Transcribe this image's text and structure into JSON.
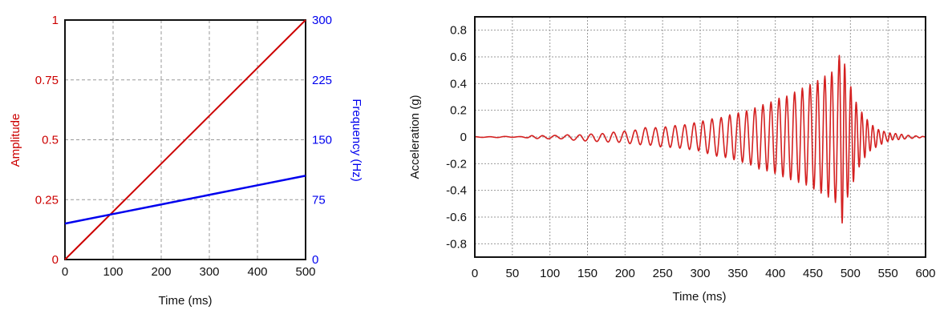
{
  "chart_data": [
    {
      "type": "line",
      "xlabel": "Time (ms)",
      "ylabel": "Amplitude",
      "y2label": "Frequency (Hz)",
      "xlim": [
        0,
        500
      ],
      "ylim": [
        0,
        1
      ],
      "y2lim": [
        0,
        300
      ],
      "xticks": [
        "0",
        "100",
        "200",
        "300",
        "400",
        "500"
      ],
      "yticks": [
        "0",
        "0.25",
        "0.5",
        "0.75",
        "1"
      ],
      "y2ticks": [
        "0",
        "75",
        "150",
        "225",
        "300"
      ],
      "grid": true,
      "colors": {
        "amplitude": "#cc0000",
        "frequency": "#0000ee"
      },
      "x": [
        0,
        100,
        200,
        300,
        400,
        500
      ],
      "series": [
        {
          "axis": "left",
          "values": [
            0,
            0.2,
            0.4,
            0.6,
            0.8,
            1.0
          ]
        },
        {
          "axis": "right",
          "values": [
            45,
            57,
            69,
            81,
            93,
            105
          ]
        }
      ]
    },
    {
      "type": "line",
      "xlabel": "Time (ms)",
      "ylabel": "Acceleration (g)",
      "xlim": [
        0,
        600
      ],
      "ylim": [
        -0.9,
        0.9
      ],
      "xticks": [
        "0",
        "50",
        "100",
        "150",
        "200",
        "250",
        "300",
        "350",
        "400",
        "450",
        "500",
        "550",
        "600"
      ],
      "yticks": [
        "-0.8",
        "-0.6",
        "-0.4",
        "-0.2",
        "0",
        "0.2",
        "0.4",
        "0.6",
        "0.8"
      ],
      "grid": true,
      "colors": {
        "signal": "#d42020"
      },
      "series": [
        {
          "points_note_type": "local extrema",
          "points": [
            [
              0,
              0.002
            ],
            [
              10,
              -0.003
            ],
            [
              20,
              0.002
            ],
            [
              30,
              -0.004
            ],
            [
              40,
              0.004
            ],
            [
              50,
              -0.002
            ],
            [
              60,
              0.003
            ],
            [
              70,
              -0.006
            ],
            [
              76,
              0.01
            ],
            [
              83,
              -0.012
            ],
            [
              90,
              0.01
            ],
            [
              98,
              -0.014
            ],
            [
              106.6,
              0.012
            ],
            [
              115,
              -0.014
            ],
            [
              123.3,
              0.016
            ],
            [
              131.5,
              -0.024
            ],
            [
              139.8,
              0.016
            ],
            [
              147,
              -0.03
            ],
            [
              154.8,
              0.022
            ],
            [
              162.5,
              -0.034
            ],
            [
              170,
              0.026
            ],
            [
              177.5,
              -0.038
            ],
            [
              184.7,
              0.036
            ],
            [
              192,
              -0.04
            ],
            [
              199.3,
              0.044
            ],
            [
              206.5,
              -0.05
            ],
            [
              213.6,
              0.052
            ],
            [
              220.3,
              -0.058
            ],
            [
              227,
              0.07
            ],
            [
              233.8,
              -0.062
            ],
            [
              240.6,
              0.07
            ],
            [
              247.2,
              -0.074
            ],
            [
              253.8,
              0.076
            ],
            [
              260.2,
              -0.078
            ],
            [
              266.6,
              0.086
            ],
            [
              273,
              -0.084
            ],
            [
              279.5,
              0.092
            ],
            [
              285.8,
              -0.094
            ],
            [
              292,
              0.106
            ],
            [
              298,
              -0.104
            ],
            [
              303.7,
              0.12
            ],
            [
              309.8,
              -0.124
            ],
            [
              315.8,
              0.136
            ],
            [
              322,
              -0.144
            ],
            [
              328,
              0.146
            ],
            [
              333.7,
              -0.154
            ],
            [
              339.4,
              0.166
            ],
            [
              345,
              -0.17
            ],
            [
              350.8,
              0.18
            ],
            [
              356.3,
              -0.19
            ],
            [
              361.8,
              0.196
            ],
            [
              367.4,
              -0.21
            ],
            [
              372.9,
              0.218
            ],
            [
              378.3,
              -0.24
            ],
            [
              383.6,
              0.242
            ],
            [
              389,
              -0.254
            ],
            [
              394.3,
              0.262
            ],
            [
              399.6,
              -0.274
            ],
            [
              405,
              0.29
            ],
            [
              410.2,
              -0.298
            ],
            [
              415.3,
              0.306
            ],
            [
              420.5,
              -0.32
            ],
            [
              425.7,
              0.336
            ],
            [
              431,
              -0.34
            ],
            [
              436,
              0.366
            ],
            [
              441.2,
              -0.36
            ],
            [
              446.3,
              0.392
            ],
            [
              451.3,
              -0.39
            ],
            [
              456.4,
              0.422
            ],
            [
              461,
              -0.42
            ],
            [
              466,
              0.456
            ],
            [
              470.6,
              -0.45
            ],
            [
              475.2,
              0.486
            ],
            [
              480,
              -0.49
            ],
            [
              485.2,
              0.61
            ],
            [
              489,
              -0.644
            ],
            [
              492.3,
              0.546
            ],
            [
              496.2,
              -0.45
            ],
            [
              500.5,
              0.376
            ],
            [
              504,
              -0.334
            ],
            [
              507.6,
              0.26
            ],
            [
              511.6,
              -0.224
            ],
            [
              515.1,
              0.186
            ],
            [
              519.1,
              -0.154
            ],
            [
              522.3,
              0.13
            ],
            [
              526.2,
              -0.104
            ],
            [
              529.7,
              0.086
            ],
            [
              533.7,
              -0.078
            ],
            [
              537.2,
              0.056
            ],
            [
              541.5,
              -0.054
            ],
            [
              544.4,
              0.042
            ],
            [
              549.7,
              -0.034
            ],
            [
              552.5,
              0.03
            ],
            [
              556,
              -0.022
            ],
            [
              560,
              0.026
            ],
            [
              564,
              -0.02
            ],
            [
              568,
              0.02
            ],
            [
              572,
              -0.015
            ],
            [
              577,
              0.012
            ],
            [
              582,
              -0.01
            ],
            [
              587,
              0.008
            ],
            [
              592,
              -0.006
            ],
            [
              596,
              0.004
            ],
            [
              600,
              0
            ]
          ]
        }
      ]
    }
  ]
}
